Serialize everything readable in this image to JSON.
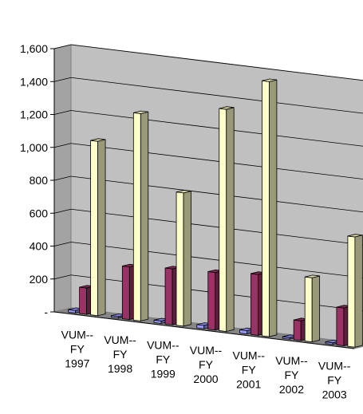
{
  "chart_data": {
    "type": "bar",
    "categories": [
      "VUM--FY 1997",
      "VUM--FY 1998",
      "VUM--FY 1999",
      "VUM--FY 2000",
      "VUM--FY 2001",
      "VUM--FY 2002",
      "VUM--FY 2003"
    ],
    "category_labels": [
      [
        "VUM--",
        "FY",
        "1997"
      ],
      [
        "VUM--",
        "FY",
        "1998"
      ],
      [
        "VUM--",
        "FY",
        "1999"
      ],
      [
        "VUM--",
        "FY",
        "2000"
      ],
      [
        "VUM--",
        "FY",
        "2001"
      ],
      [
        "VUM--",
        "FY",
        "2002"
      ],
      [
        "VUM--",
        "FY",
        "2003"
      ]
    ],
    "series": [
      {
        "values": [
          15,
          10,
          15,
          20,
          20,
          10,
          10
        ],
        "color": "#9999ff"
      },
      {
        "values": [
          160,
          320,
          340,
          350,
          370,
          120,
          230
        ],
        "color": "#993366"
      },
      {
        "values": [
          1060,
          1260,
          810,
          1350,
          1550,
          390,
          670
        ],
        "color": "#ffffcc"
      }
    ],
    "ylim": [
      0,
      1600
    ],
    "yticks": [
      {
        "value": 0,
        "label": "-"
      },
      {
        "value": 200,
        "label": "200"
      },
      {
        "value": 400,
        "label": "400"
      },
      {
        "value": 600,
        "label": "600"
      },
      {
        "value": 800,
        "label": "800"
      },
      {
        "value": 1000,
        "label": "1,000"
      },
      {
        "value": 1200,
        "label": "1,200"
      },
      {
        "value": 1400,
        "label": "1,400"
      },
      {
        "value": 1600,
        "label": "1,600"
      }
    ],
    "grid": true,
    "style": "3d-clustered-column",
    "wall_color": "#c0c0c0",
    "legend": "none"
  }
}
